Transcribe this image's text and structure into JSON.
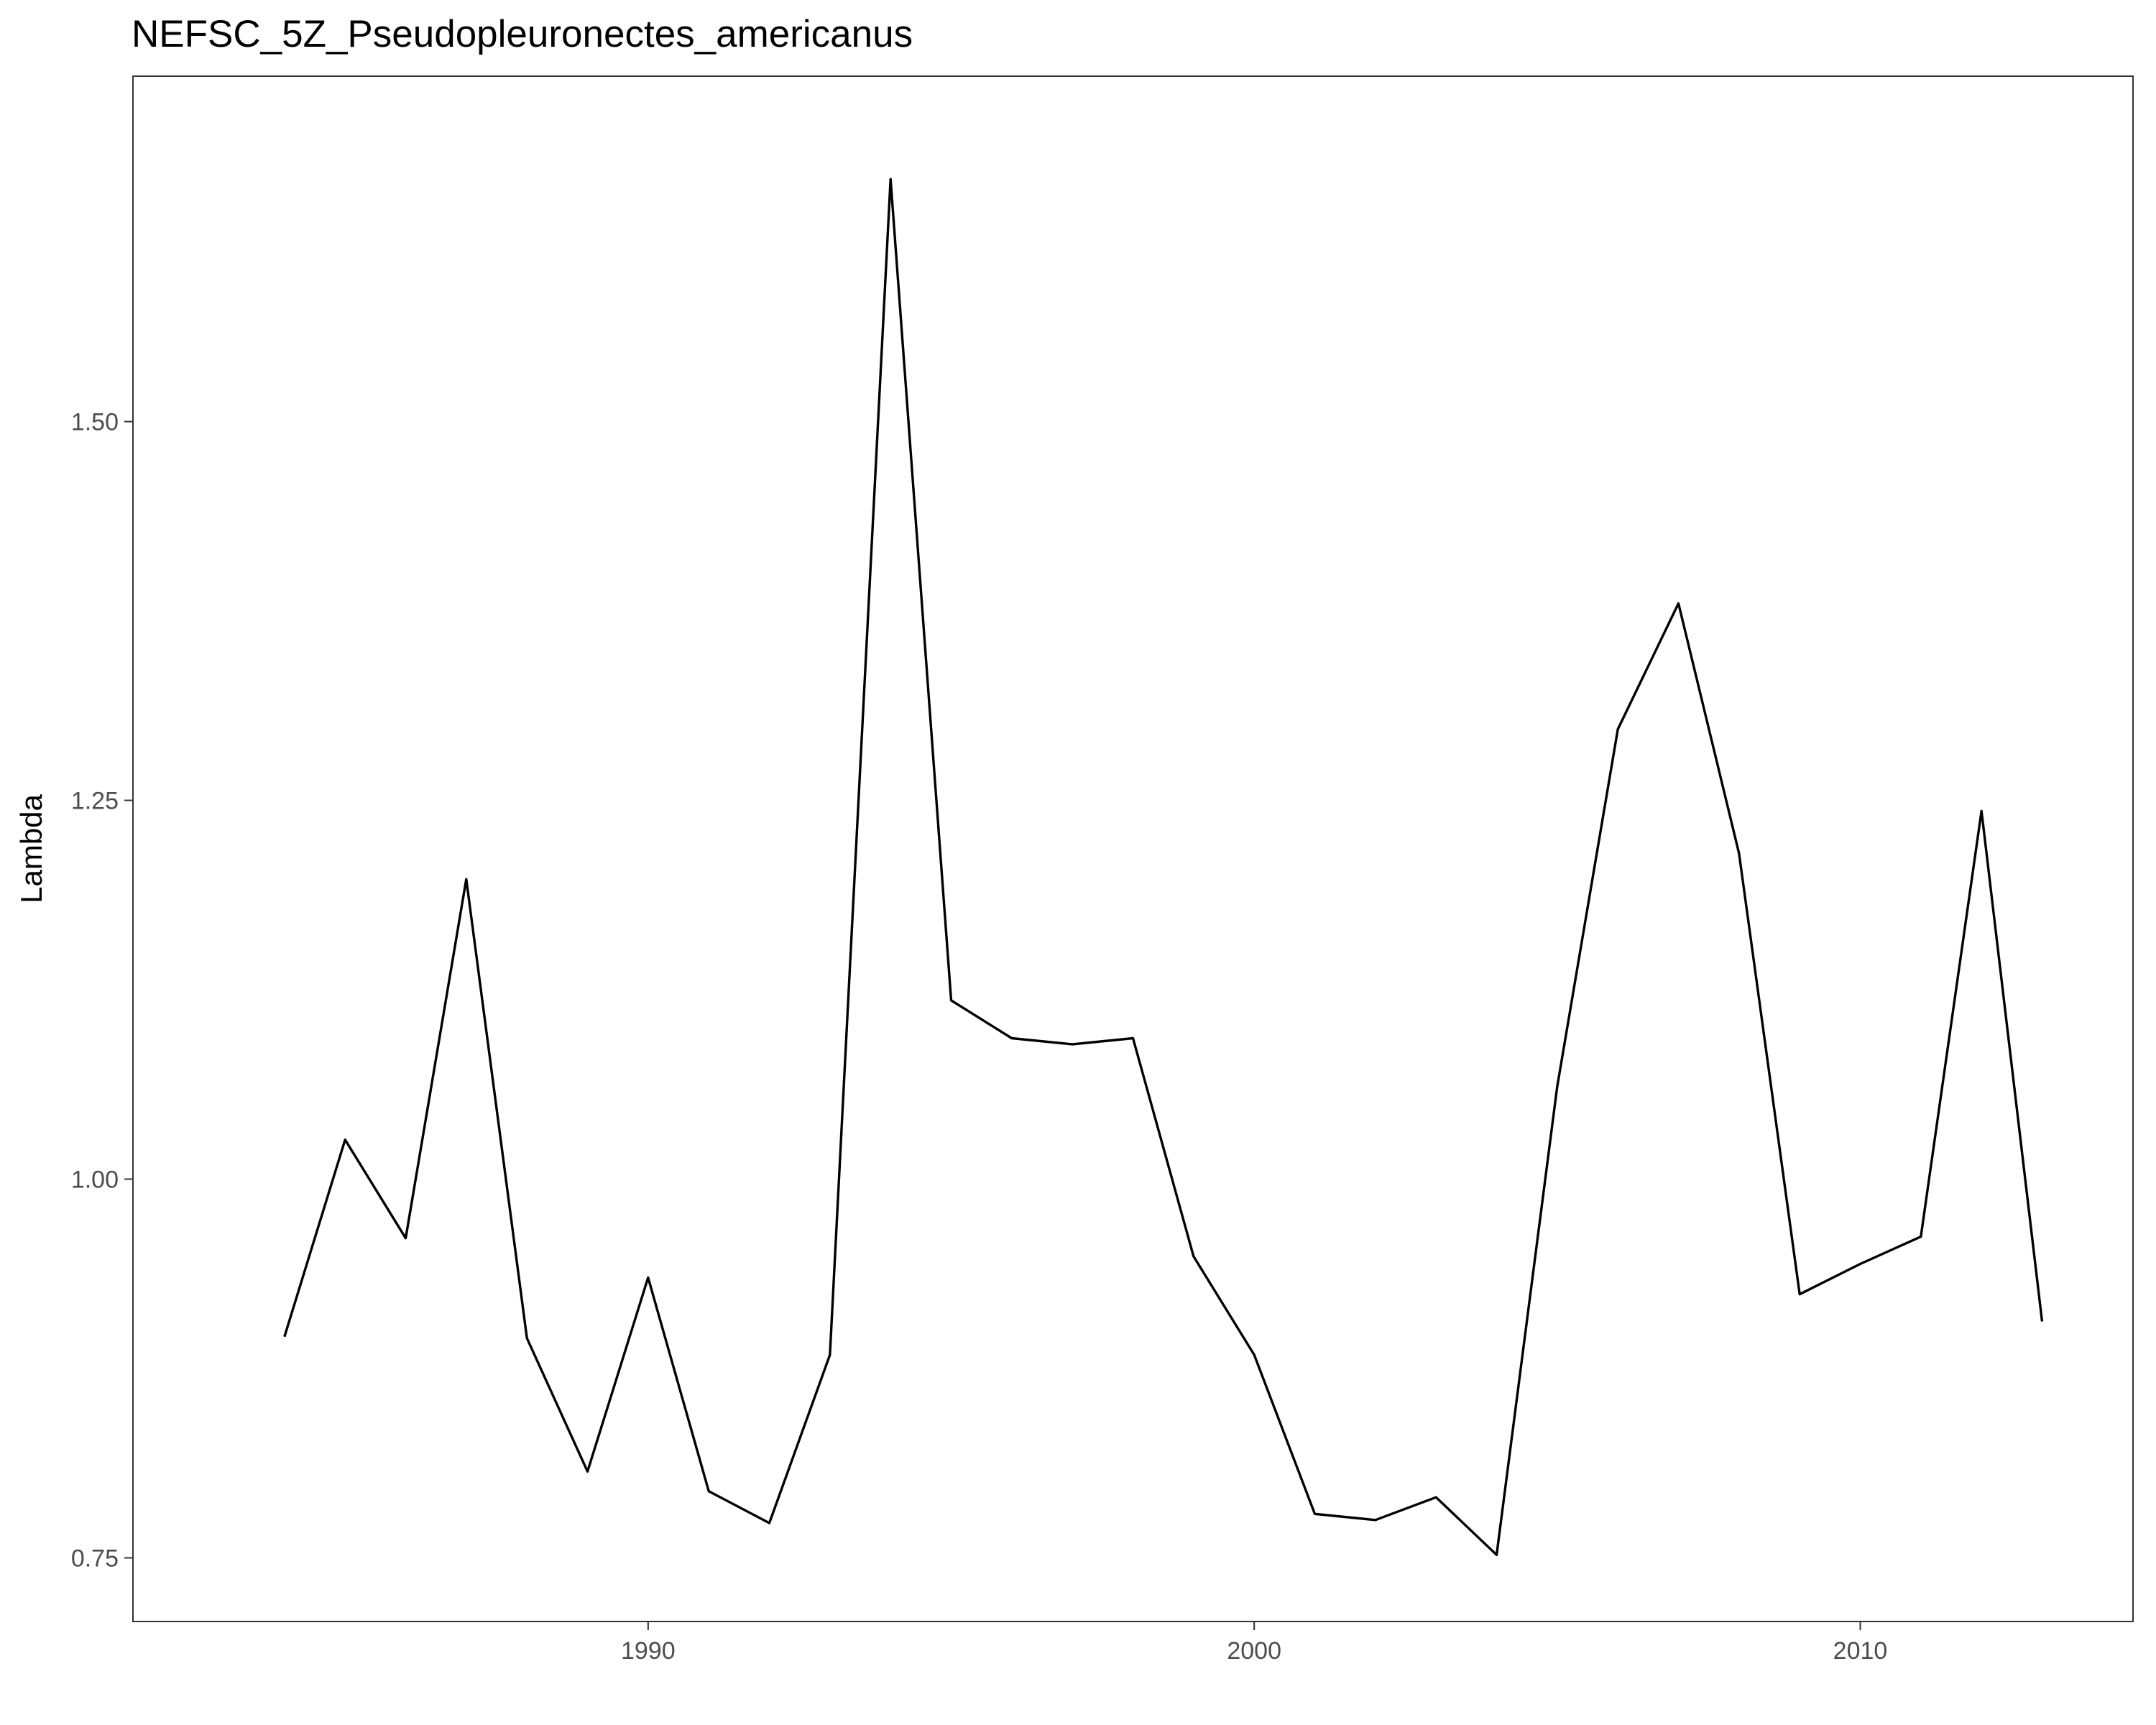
{
  "chart_data": {
    "type": "line",
    "title": "NEFSC_5Z_Pseudopleuronectes_americanus",
    "xlabel": "",
    "ylabel": "Lambda",
    "xlim": [
      1981.5,
      2014.5
    ],
    "ylim": [
      0.708,
      1.728
    ],
    "x_ticks": [
      1990,
      2000,
      2010
    ],
    "x_tick_labels": [
      "1990",
      "2000",
      "2010"
    ],
    "y_ticks": [
      0.75,
      1.0,
      1.25,
      1.5
    ],
    "y_tick_labels": [
      "0.75",
      "1.00",
      "1.25",
      "1.50"
    ],
    "grid": false,
    "legend": "none",
    "series": [
      {
        "color": "#000000",
        "x": [
          1984,
          1985,
          1986,
          1987,
          1988,
          1989,
          1990,
          1991,
          1992,
          1993,
          1994,
          1995,
          1996,
          1997,
          1998,
          1999,
          2000,
          2001,
          2002,
          2003,
          2004,
          2005,
          2006,
          2007,
          2008,
          2009,
          2010,
          2011,
          2012,
          2013
        ],
        "y": [
          0.896,
          1.026,
          0.961,
          1.198,
          0.895,
          0.807,
          0.935,
          0.794,
          0.773,
          0.884,
          1.66,
          1.118,
          1.093,
          1.089,
          1.093,
          0.949,
          0.884,
          0.779,
          0.775,
          0.79,
          0.752,
          1.061,
          1.297,
          1.38,
          1.215,
          0.924,
          0.944,
          0.962,
          1.243,
          0.906
        ]
      }
    ]
  }
}
